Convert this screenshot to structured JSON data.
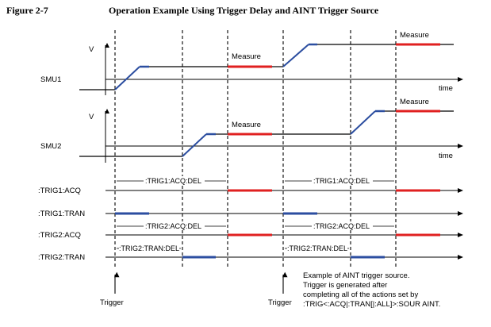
{
  "figure": {
    "number": "Figure 2-7",
    "title": "Operation Example Using Trigger Delay and AINT Trigger Source"
  },
  "signals": {
    "smu1": "SMU1",
    "smu2": "SMU2",
    "trig1_acq": ":TRIG1:ACQ",
    "trig1_tran": ":TRIG1:TRAN",
    "trig2_acq": ":TRIG2:ACQ",
    "trig2_tran": ":TRIG2:TRAN"
  },
  "axis": {
    "v": "V",
    "time": "time"
  },
  "annotations": {
    "measure": "Measure",
    "trig1_acq_del": ":TRIG1:ACQ:DEL",
    "trig2_acq_del": ":TRIG2:ACQ:DEL",
    "trig2_tran_del": ":TRIG2:TRAN:DEL",
    "trigger": "Trigger"
  },
  "note": {
    "line1": "Example of AINT trigger source.",
    "line2": "Trigger is generated after",
    "line3": "completing all of the actions set by",
    "line4": ":TRIG<:ACQ|:TRAN[|:ALL]>:SOUR AINT."
  },
  "colors": {
    "ramp": "#2c4ea0",
    "measure": "#e02020",
    "line": "#000000"
  }
}
